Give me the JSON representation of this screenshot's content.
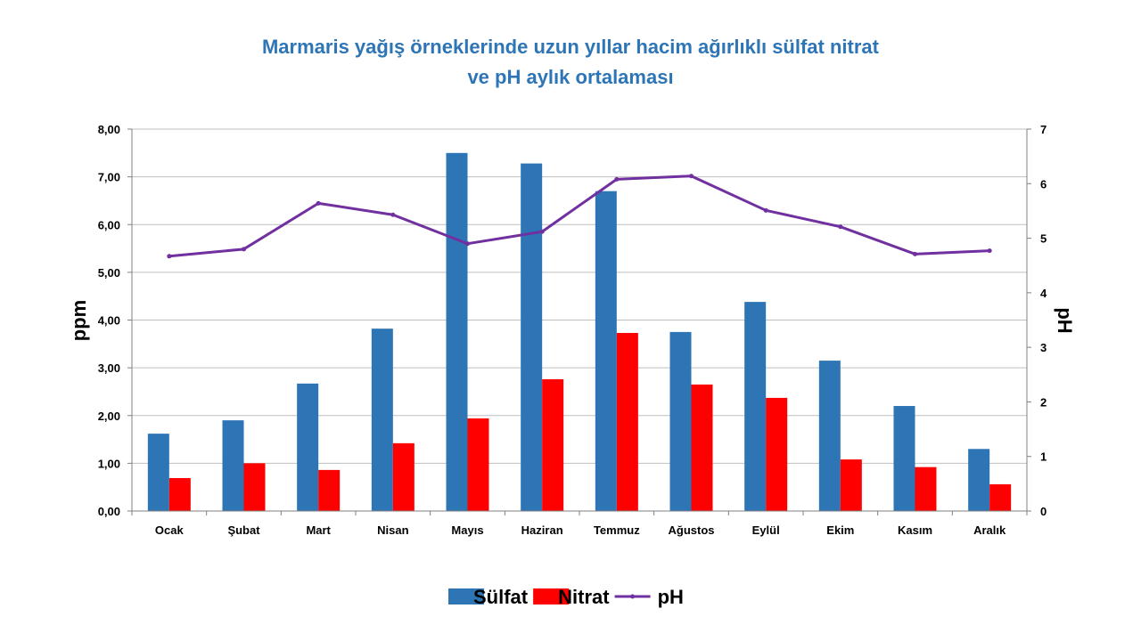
{
  "chart_data": {
    "type": "bar",
    "title_lines": [
      "Marmaris yağış örneklerinde uzun yıllar hacim ağırlıklı sülfat nitrat",
      "ve pH aylık ortalaması"
    ],
    "categories": [
      "Ocak",
      "Şubat",
      "Mart",
      "Nisan",
      "Mayıs",
      "Haziran",
      "Temmuz",
      "Ağustos",
      "Eylül",
      "Ekim",
      "Kasım",
      "Aralık"
    ],
    "series": [
      {
        "name": "Sülfat",
        "type": "bar",
        "axis": "left",
        "color": "#2e75b6",
        "values": [
          1.62,
          1.9,
          2.67,
          3.82,
          7.5,
          7.28,
          6.7,
          3.75,
          4.38,
          3.15,
          2.2,
          1.3
        ]
      },
      {
        "name": "Nitrat",
        "type": "bar",
        "axis": "left",
        "color": "#ff0000",
        "values": [
          0.69,
          1.0,
          0.86,
          1.42,
          1.94,
          2.76,
          3.73,
          2.65,
          2.37,
          1.08,
          0.92,
          0.56
        ]
      },
      {
        "name": "pH",
        "type": "line",
        "axis": "right",
        "color": "#7030a0",
        "values": [
          4.67,
          4.8,
          5.64,
          5.43,
          4.9,
          5.12,
          6.08,
          6.14,
          5.51,
          5.21,
          4.71,
          4.77
        ]
      }
    ],
    "ylabel": "ppm",
    "y2label": "pH",
    "ylim": [
      0,
      8
    ],
    "y2lim": [
      0,
      7
    ],
    "yticks": [
      "0,00",
      "1,00",
      "2,00",
      "3,00",
      "4,00",
      "5,00",
      "6,00",
      "7,00",
      "8,00"
    ],
    "y2ticks": [
      "0",
      "1",
      "2",
      "3",
      "4",
      "5",
      "6",
      "7"
    ],
    "grid": true,
    "legend_position": "bottom"
  }
}
